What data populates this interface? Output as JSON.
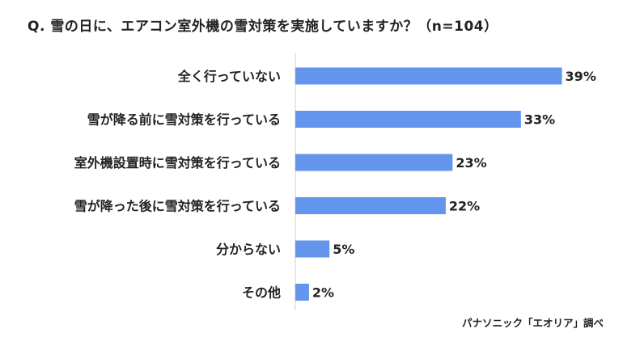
{
  "chart_data": {
    "type": "bar",
    "orientation": "horizontal",
    "title": "Q. 雪の日に、エアコン室外機の雪対策を実施していますか？（n=104）",
    "categories": [
      "全く行っていない",
      "雪が降る前に雪対策を行っている",
      "室外機設置時に雪対策を行っている",
      "雪が降った後に雪対策を行っている",
      "分からない",
      "その他"
    ],
    "values": [
      39,
      33,
      23,
      22,
      5,
      2
    ],
    "value_labels": [
      "39%",
      "33%",
      "23%",
      "22%",
      "5%",
      "2%"
    ],
    "unit": "%",
    "xlim": [
      0,
      100
    ],
    "grid": false,
    "legend": "none",
    "bar_color": "#6495ED",
    "axis_color": "#d0d0d0",
    "source": "パナソニック「エオリア」調べ"
  }
}
